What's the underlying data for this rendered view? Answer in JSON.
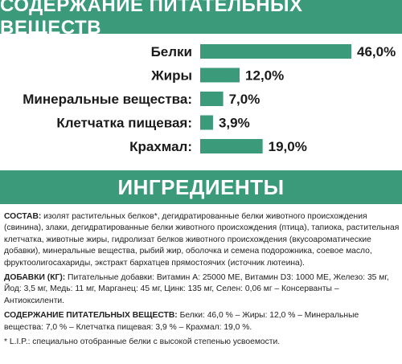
{
  "headers": {
    "nutrients": "СОДЕРЖАНИЕ ПИТАТЕЛЬНЫХ ВЕЩЕСТВ",
    "ingredients": "ИНГРЕДИЕНТЫ"
  },
  "colors": {
    "accent": "#3a9a7a",
    "text": "#1a1a1a"
  },
  "chart_data": {
    "type": "bar",
    "orientation": "horizontal",
    "title": "СОДЕРЖАНИЕ ПИТАТЕЛЬНЫХ ВЕЩЕСТВ",
    "categories": [
      "Белки",
      "Жиры",
      "Минеральные вещества:",
      "Клетчатка пищевая:",
      "Крахмал:"
    ],
    "values": [
      46.0,
      12.0,
      7.0,
      3.9,
      19.0
    ],
    "value_labels": [
      "46,0%",
      "12,0%",
      "7,0%",
      "3,9%",
      "19,0%"
    ],
    "xlim": [
      0,
      46
    ],
    "grid": false,
    "legend": "none"
  },
  "ingredients": {
    "composition_label": "СОСТАВ:",
    "composition_text": " изолят растительных белков*, дегидратированные белки животного происхождения (свинина), злаки, дегидратированные белки животного происхождения (птица), тапиока, растительная клетчатка, животные жиры, гидролизат белков животного происхождения (вкусоароматические добавки), минеральные вещества, рыбий жир, оболочка и семена подорожника, соевое масло, фруктоолигосахариды, экстракт бархатцев прямостоячих (источник лютеина).",
    "additives_label": "ДОБАВКИ (КГ):",
    "additives_text": " Питательные добавки: Витамин А: 25000 МЕ, Витамин D3: 1000 МЕ, Железо: 35 мг, Йод: 3,5 мг, Медь: 11 мг, Марганец: 45 мг, Цинк: 135 мг, Селен: 0,06 мг – Консерванты – Антиоксиленти.",
    "nutrients_label": "СОДЕРЖАНИЕ ПИТАТЕЛЬНЫХ ВЕЩЕСТВ:",
    "nutrients_text": " Белки: 46,0 % – Жиры: 12,0 % – Минеральные вещества: 7,0 % – Клетчатка пищевая: 3,9 % – Крахмал: 19,0 %.",
    "footnote": "* L.I.P.: специально отобранные белки с высокой степенью усвоемости."
  }
}
